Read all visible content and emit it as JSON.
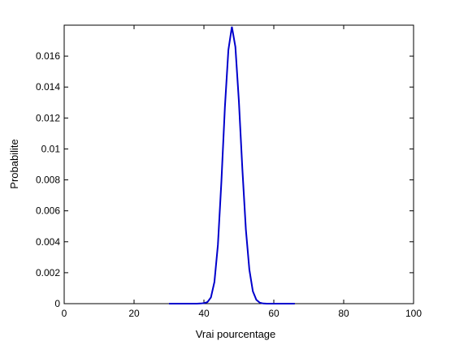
{
  "chart_data": {
    "type": "line",
    "title": "",
    "xlabel": "Vrai pourcentage",
    "ylabel": "Probabilite",
    "xlim": [
      0,
      100
    ],
    "ylim": [
      0,
      0.018
    ],
    "xticks": [
      0,
      20,
      40,
      60,
      80,
      100
    ],
    "xtick_labels": [
      "0",
      "20",
      "40",
      "60",
      "80",
      "100"
    ],
    "yticks": [
      0,
      0.002,
      0.004,
      0.006,
      0.008,
      0.01,
      0.012,
      0.014,
      0.016
    ],
    "ytick_labels": [
      "0",
      "0.002",
      "0.004",
      "0.006",
      "0.008",
      "0.01",
      "0.012",
      "0.014",
      "0.016"
    ],
    "grid": false,
    "line_color": "#0000cc",
    "series": [
      {
        "x": [
          30,
          32,
          34,
          36,
          38,
          39,
          40,
          41,
          42,
          43,
          44,
          45,
          46,
          47,
          48,
          49,
          50,
          51,
          52,
          53,
          54,
          55,
          56,
          57,
          58,
          60,
          62,
          64,
          66
        ],
        "y": [
          0,
          0,
          0,
          0,
          0,
          1e-05,
          3e-05,
          0.0001,
          0.0004,
          0.0014,
          0.0038,
          0.0079,
          0.0127,
          0.0164,
          0.0179,
          0.0166,
          0.0131,
          0.0087,
          0.0048,
          0.0022,
          0.0008,
          0.00025,
          6e-05,
          1e-05,
          0,
          0,
          0,
          0,
          0
        ]
      }
    ]
  }
}
